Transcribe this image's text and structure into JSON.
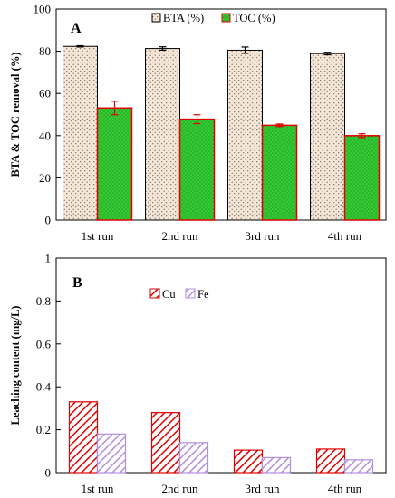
{
  "chart_data": [
    {
      "type": "bar",
      "panel_label": "A",
      "title": "",
      "xlabel": "",
      "ylabel": "BTA & TOC removal (%)",
      "categories": [
        "1st run",
        "2nd run",
        "3rd run",
        "4th run"
      ],
      "ylim": [
        0,
        100
      ],
      "yticks": [
        "0",
        "20",
        "40",
        "60",
        "80",
        "100"
      ],
      "grid": false,
      "legend_position": "top-center",
      "series": [
        {
          "name": "BTA (%)",
          "values": [
            82.3,
            81.3,
            80.5,
            78.9
          ],
          "errors": [
            0.3,
            0.8,
            1.5,
            0.6
          ],
          "color": "#f6e6d6",
          "pattern": "dots",
          "edge": "#000000"
        },
        {
          "name": "TOC (%)",
          "values": [
            53.1,
            47.8,
            44.9,
            40.0
          ],
          "errors": [
            3.2,
            2.1,
            0.6,
            0.9
          ],
          "color": "#33cc33",
          "pattern": "dots",
          "edge": "#e00000",
          "error_color": "#e00000"
        }
      ]
    },
    {
      "type": "bar",
      "panel_label": "B",
      "title": "",
      "xlabel": "",
      "ylabel": "Leaching content (mg/L)",
      "categories": [
        "1st run",
        "2nd run",
        "3rd run",
        "4th run"
      ],
      "ylim": [
        0,
        1
      ],
      "yticks": [
        "0",
        "0.2",
        "0.4",
        "0.6",
        "0.8",
        "1"
      ],
      "grid": false,
      "legend_position": "top-left",
      "series": [
        {
          "name": "Cu",
          "values": [
            0.33,
            0.28,
            0.105,
            0.11
          ],
          "color": "#e00000",
          "pattern": "hatch"
        },
        {
          "name": "Fe",
          "values": [
            0.18,
            0.14,
            0.07,
            0.06
          ],
          "color": "#b28ee0",
          "pattern": "hatch"
        }
      ]
    }
  ]
}
